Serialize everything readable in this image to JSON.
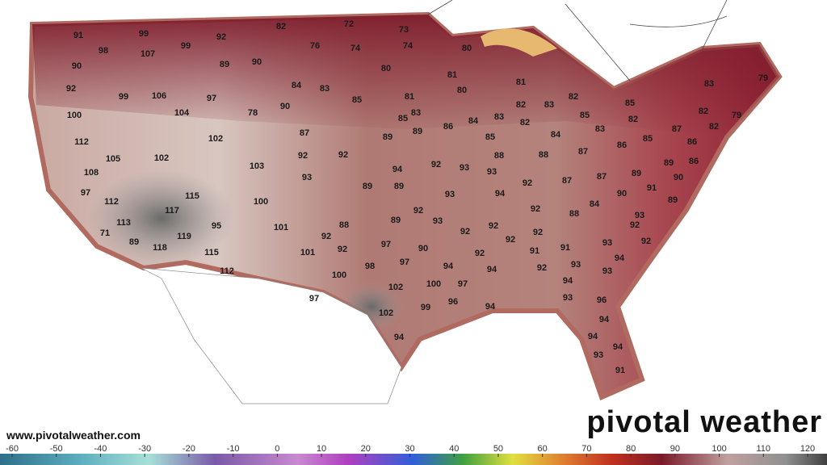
{
  "website": "www.pivotalweather.com",
  "logo": "pivotal weather",
  "temperatures": [
    91,
    99,
    98,
    107,
    99,
    92,
    82,
    72,
    73,
    76,
    74,
    74,
    89,
    90,
    90,
    92,
    99,
    106,
    97,
    104,
    100,
    78,
    90,
    84,
    83,
    85,
    80,
    80,
    81,
    80,
    81,
    83,
    85,
    89,
    89,
    86,
    84,
    83,
    82,
    82,
    81,
    83,
    82,
    85,
    85,
    83,
    79,
    82,
    79,
    82,
    87,
    82,
    83,
    84,
    85,
    87,
    112,
    102,
    105,
    102,
    103,
    92,
    92,
    94,
    92,
    93,
    93,
    88,
    88,
    87,
    86,
    85,
    86,
    89,
    86,
    90,
    108,
    97,
    93,
    89,
    89,
    93,
    94,
    92,
    87,
    87,
    89,
    91,
    90,
    89,
    112,
    115,
    117,
    100,
    101,
    88,
    92,
    89,
    92,
    93,
    92,
    92,
    92,
    88,
    84,
    92,
    93,
    113,
    71,
    89,
    118,
    119,
    95,
    92,
    101,
    97,
    90,
    97,
    92,
    92,
    91,
    91,
    93,
    92,
    115,
    112,
    100,
    98,
    94,
    92,
    94,
    92,
    93,
    94,
    93,
    102,
    100,
    97,
    94,
    97,
    96,
    94,
    93,
    96,
    102,
    99,
    94,
    94,
    94,
    94,
    93,
    91
  ],
  "colorbar": {
    "range": [
      -60,
      120
    ],
    "ticks": [
      -60,
      -50,
      -40,
      -30,
      -20,
      -10,
      0,
      10,
      20,
      30,
      40,
      50,
      60,
      70,
      80,
      90,
      100,
      110,
      120
    ]
  }
}
